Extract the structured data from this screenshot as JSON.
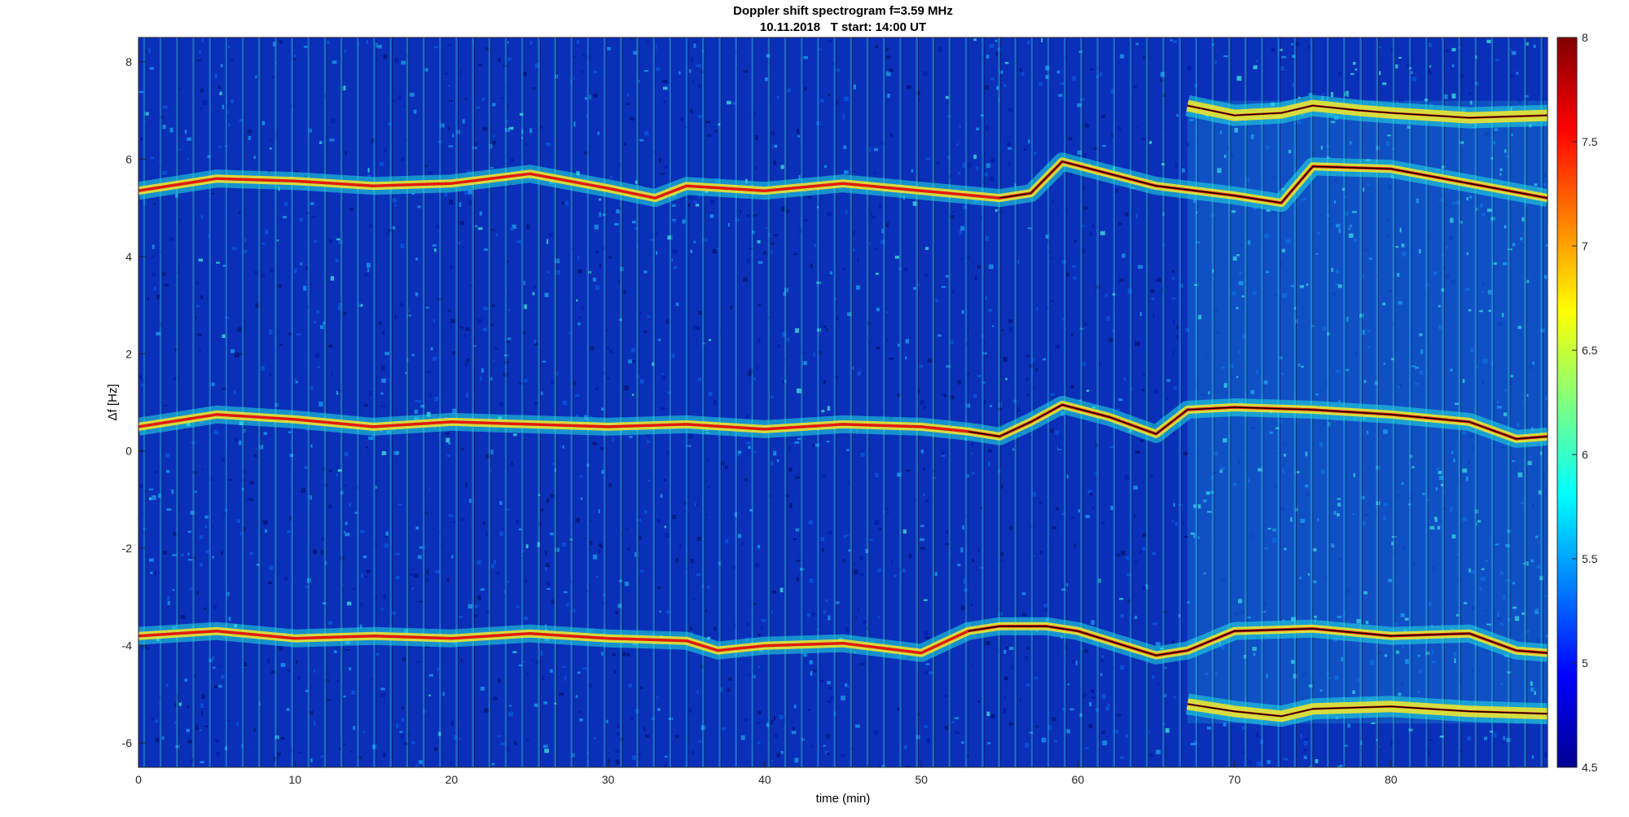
{
  "chart_data": {
    "type": "heatmap",
    "title": "Doppler shift spectrogram f=3.59 MHz",
    "subtitle": "10.11.2018   T start: 14:00 UT",
    "xlabel": "time (min)",
    "ylabel": "Δf [Hz]",
    "xlim": [
      0,
      90
    ],
    "ylim": [
      -6.5,
      8.5
    ],
    "xticks": [
      0,
      10,
      20,
      30,
      40,
      50,
      60,
      70,
      80
    ],
    "yticks": [
      -6,
      -4,
      -2,
      0,
      2,
      4,
      6,
      8
    ],
    "colorbar": {
      "range": [
        4.5,
        8
      ],
      "ticks": [
        4.5,
        5,
        5.5,
        6,
        6.5,
        7,
        7.5,
        8
      ],
      "colormap": "jet"
    },
    "colors": {
      "background": "#0a2fb8",
      "trace_strong": "#e01a10",
      "trace_halo": "#f7e825",
      "fit_line": "#000000"
    },
    "series": [
      {
        "x": [
          0,
          5,
          10,
          15,
          20,
          25,
          30,
          33,
          35,
          40,
          45,
          50,
          55,
          57,
          59,
          62,
          65,
          70,
          73,
          75,
          80,
          85,
          90
        ],
        "values": [
          5.35,
          5.6,
          5.55,
          5.45,
          5.5,
          5.7,
          5.4,
          5.2,
          5.45,
          5.35,
          5.5,
          5.35,
          5.2,
          5.3,
          5.95,
          5.7,
          5.45,
          5.25,
          5.1,
          5.85,
          5.8,
          5.5,
          5.2
        ]
      },
      {
        "x": [
          0,
          5,
          10,
          15,
          20,
          25,
          30,
          35,
          40,
          45,
          50,
          53,
          55,
          57,
          59,
          62,
          65,
          67,
          70,
          75,
          80,
          85,
          88,
          90
        ],
        "values": [
          0.5,
          0.75,
          0.65,
          0.5,
          0.6,
          0.55,
          0.5,
          0.55,
          0.45,
          0.55,
          0.5,
          0.4,
          0.3,
          0.6,
          0.95,
          0.7,
          0.35,
          0.85,
          0.9,
          0.85,
          0.75,
          0.6,
          0.25,
          0.3
        ]
      },
      {
        "x": [
          0,
          5,
          10,
          15,
          20,
          25,
          30,
          35,
          37,
          40,
          45,
          50,
          53,
          55,
          58,
          60,
          63,
          65,
          67,
          70,
          75,
          80,
          85,
          88,
          90
        ],
        "values": [
          -3.8,
          -3.7,
          -3.85,
          -3.8,
          -3.85,
          -3.75,
          -3.85,
          -3.9,
          -4.1,
          -4.0,
          -3.95,
          -4.15,
          -3.7,
          -3.6,
          -3.6,
          -3.7,
          -4.0,
          -4.2,
          -4.1,
          -3.7,
          -3.65,
          -3.8,
          -3.75,
          -4.1,
          -4.15
        ]
      },
      {
        "x": [
          67,
          70,
          73,
          75,
          78,
          80,
          85,
          90
        ],
        "values": [
          7.1,
          6.9,
          6.95,
          7.1,
          7.0,
          6.95,
          6.85,
          6.9
        ]
      },
      {
        "x": [
          67,
          70,
          73,
          75,
          80,
          85,
          90
        ],
        "values": [
          -5.2,
          -5.35,
          -5.45,
          -5.3,
          -5.25,
          -5.35,
          -5.4
        ]
      }
    ]
  }
}
